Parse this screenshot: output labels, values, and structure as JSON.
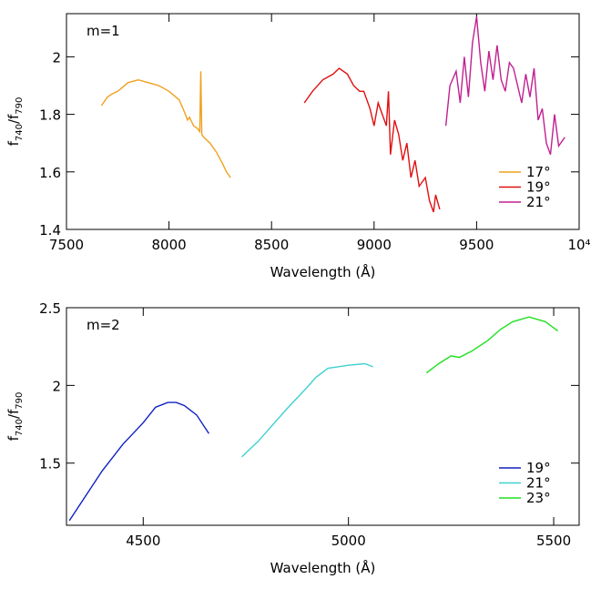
{
  "chart_data": [
    {
      "type": "line",
      "annotation": "m=1",
      "xlabel": "Wavelength (Å)",
      "ylabel": [
        "f",
        "740",
        "/f",
        "790"
      ],
      "xlim": [
        7500,
        10000
      ],
      "ylim": [
        1.4,
        2.15
      ],
      "xticks": [
        7500,
        8000,
        8500,
        9000,
        9500,
        {
          "value": 10000,
          "label": "10⁴"
        }
      ],
      "yticks": [
        1.4,
        1.6,
        1.8,
        2
      ],
      "legend": "lower right",
      "series": [
        {
          "name": "17°",
          "color": "#f0a01e",
          "x": [
            7670,
            7700,
            7720,
            7750,
            7800,
            7850,
            7900,
            7950,
            8000,
            8050,
            8080,
            8090,
            8100,
            8120,
            8140,
            8150,
            8155,
            8160,
            8170,
            8200,
            8230,
            8260,
            8280,
            8300
          ],
          "values": [
            1.83,
            1.86,
            1.87,
            1.88,
            1.91,
            1.92,
            1.91,
            1.9,
            1.88,
            1.85,
            1.8,
            1.78,
            1.79,
            1.76,
            1.75,
            1.74,
            1.95,
            1.73,
            1.72,
            1.7,
            1.67,
            1.63,
            1.6,
            1.58
          ]
        },
        {
          "name": "19°",
          "color": "#e01010",
          "x": [
            8660,
            8700,
            8750,
            8800,
            8830,
            8870,
            8900,
            8930,
            8950,
            8980,
            9000,
            9020,
            9040,
            9060,
            9070,
            9080,
            9100,
            9120,
            9140,
            9160,
            9180,
            9200,
            9220,
            9250,
            9270,
            9290,
            9300,
            9320
          ],
          "values": [
            1.84,
            1.88,
            1.92,
            1.94,
            1.96,
            1.94,
            1.9,
            1.88,
            1.88,
            1.82,
            1.76,
            1.84,
            1.8,
            1.76,
            1.88,
            1.66,
            1.78,
            1.73,
            1.64,
            1.7,
            1.58,
            1.64,
            1.55,
            1.58,
            1.5,
            1.46,
            1.52,
            1.47
          ]
        },
        {
          "name": "21°",
          "color": "#c02090",
          "x": [
            9350,
            9370,
            9400,
            9420,
            9440,
            9460,
            9480,
            9500,
            9520,
            9540,
            9560,
            9580,
            9600,
            9620,
            9640,
            9660,
            9680,
            9700,
            9720,
            9740,
            9760,
            9780,
            9800,
            9820,
            9840,
            9860,
            9880,
            9900,
            9930
          ],
          "values": [
            1.76,
            1.9,
            1.95,
            1.84,
            2.0,
            1.86,
            2.05,
            2.14,
            1.98,
            1.88,
            2.02,
            1.92,
            2.04,
            1.92,
            1.88,
            1.98,
            1.96,
            1.9,
            1.84,
            1.94,
            1.86,
            1.96,
            1.78,
            1.82,
            1.7,
            1.66,
            1.8,
            1.69,
            1.72
          ]
        }
      ]
    },
    {
      "type": "line",
      "annotation": "m=2",
      "xlabel": "Wavelength (Å)",
      "ylabel": [
        "f",
        "740",
        "/f",
        "790"
      ],
      "xlim": [
        4313,
        5562
      ],
      "ylim": [
        1.1,
        2.5
      ],
      "xticks": [
        4500,
        5000,
        5500
      ],
      "yticks": [
        1.5,
        2,
        2.5
      ],
      "legend": "lower right",
      "series": [
        {
          "name": "19°",
          "color": "#1020c0",
          "x": [
            4320,
            4350,
            4400,
            4450,
            4500,
            4530,
            4560,
            4580,
            4600,
            4630,
            4660
          ],
          "values": [
            1.13,
            1.25,
            1.45,
            1.62,
            1.76,
            1.86,
            1.89,
            1.89,
            1.87,
            1.81,
            1.69
          ]
        },
        {
          "name": "21°",
          "color": "#40d0d0",
          "x": [
            4740,
            4780,
            4850,
            4900,
            4920,
            4950,
            5000,
            5040,
            5060
          ],
          "values": [
            1.54,
            1.64,
            1.85,
            1.99,
            2.05,
            2.11,
            2.13,
            2.14,
            2.12
          ]
        },
        {
          "name": "23°",
          "color": "#20e020",
          "x": [
            5190,
            5220,
            5250,
            5270,
            5300,
            5340,
            5370,
            5400,
            5440,
            5480,
            5510
          ],
          "values": [
            2.08,
            2.14,
            2.19,
            2.18,
            2.22,
            2.29,
            2.36,
            2.41,
            2.44,
            2.41,
            2.35
          ]
        }
      ]
    }
  ]
}
